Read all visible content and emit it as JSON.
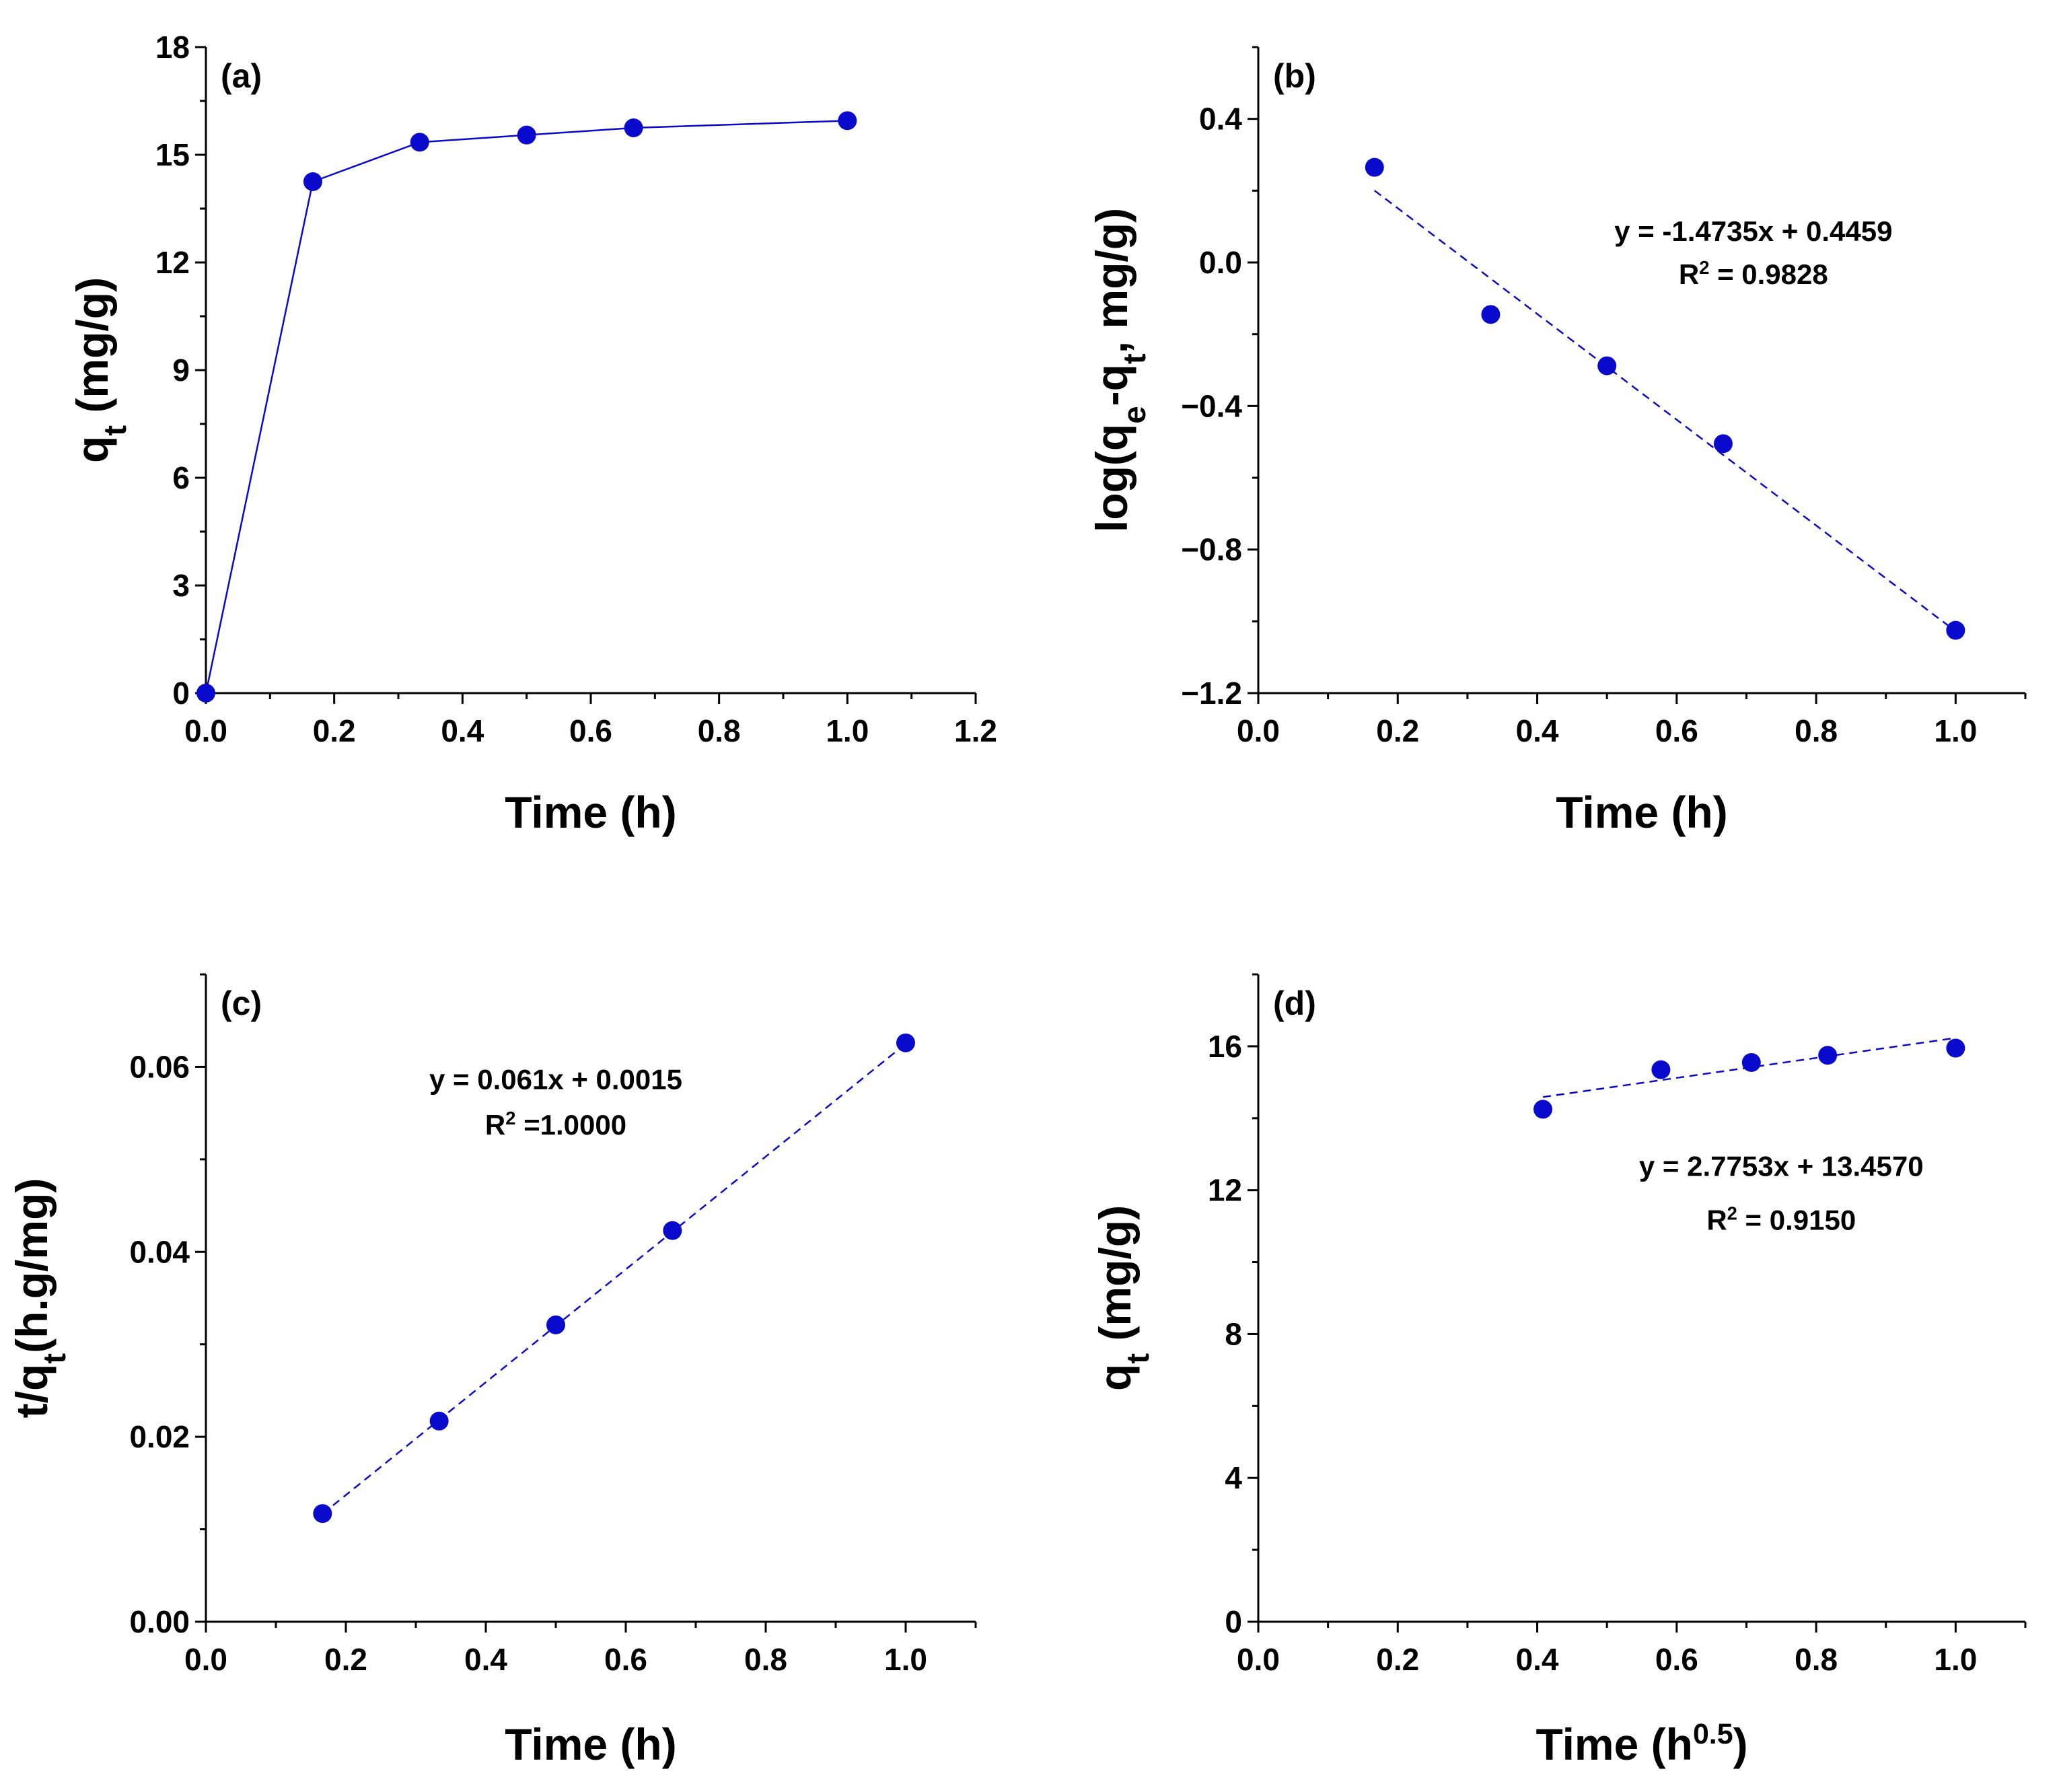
{
  "colors": {
    "series": "#0A0ACD",
    "axis": "#000000",
    "background": "#FFFFFF"
  },
  "chart_data": [
    {
      "panel_label": "(a)",
      "type": "line",
      "marker": "circle",
      "line_style": "solid",
      "xlabel": "Time (h)",
      "ylabel_parts": [
        {
          "text": "q",
          "shift": "none"
        },
        {
          "text": "t",
          "shift": "sub"
        },
        {
          "text": " (mg/g)",
          "shift": "none"
        }
      ],
      "xlim": [
        0,
        1.2
      ],
      "ylim": [
        0,
        18
      ],
      "xticks": [
        "0.0",
        "0.2",
        "0.4",
        "0.6",
        "0.8",
        "1.0",
        "1.2"
      ],
      "yticks": [
        "0",
        "3",
        "6",
        "9",
        "12",
        "15",
        "18"
      ],
      "x": [
        0,
        0.1667,
        0.3333,
        0.5,
        0.6667,
        1.0
      ],
      "y": [
        0,
        14.25,
        15.35,
        15.55,
        15.75,
        15.95
      ],
      "annotations": []
    },
    {
      "panel_label": "(b)",
      "type": "scatter",
      "marker": "circle",
      "line_style": "none",
      "xlabel": "Time (h)",
      "ylabel_parts": [
        {
          "text": "log(q",
          "shift": "none"
        },
        {
          "text": "e",
          "shift": "sub"
        },
        {
          "text": "-q",
          "shift": "none"
        },
        {
          "text": "t",
          "shift": "sub"
        },
        {
          "text": ", mg/g)",
          "shift": "none"
        }
      ],
      "xlim": [
        0,
        1.1
      ],
      "ylim": [
        -1.2,
        0.6
      ],
      "xticks": [
        "0.0",
        "0.2",
        "0.4",
        "0.6",
        "0.8",
        "1.0"
      ],
      "yticks": [
        "−1.2",
        "−0.8",
        "−0.4",
        "0.0",
        "0.4"
      ],
      "x": [
        0.1667,
        0.3333,
        0.5,
        0.6667,
        1.0
      ],
      "y": [
        0.265,
        -0.145,
        -0.288,
        -0.505,
        -1.025
      ],
      "fit": {
        "slope": -1.4735,
        "intercept": 0.4459,
        "x_range": [
          0.1667,
          1.0
        ]
      },
      "annotations": [
        {
          "parts": [
            {
              "text": "y = -1.4735x + 0.4459",
              "shift": "none"
            }
          ],
          "at": [
            0.71,
            0.06
          ]
        },
        {
          "parts": [
            {
              "text": "R",
              "shift": "none"
            },
            {
              "text": "2",
              "shift": "sup"
            },
            {
              "text": " = 0.9828",
              "shift": "none"
            }
          ],
          "at": [
            0.71,
            -0.06
          ]
        }
      ]
    },
    {
      "panel_label": "(c)",
      "type": "scatter",
      "marker": "circle",
      "line_style": "none",
      "xlabel": "Time (h)",
      "ylabel_parts": [
        {
          "text": "t/q",
          "shift": "none"
        },
        {
          "text": "t",
          "shift": "sub"
        },
        {
          "text": "(h.g/mg)",
          "shift": "none"
        }
      ],
      "xlim": [
        0,
        1.1
      ],
      "ylim": [
        0,
        0.07
      ],
      "xticks": [
        "0.0",
        "0.2",
        "0.4",
        "0.6",
        "0.8",
        "1.0"
      ],
      "yticks": [
        "0.00",
        "0.02",
        "0.04",
        "0.06"
      ],
      "x": [
        0.1667,
        0.3333,
        0.5,
        0.6667,
        1.0
      ],
      "y": [
        0.0117,
        0.0217,
        0.0321,
        0.0423,
        0.0626
      ],
      "fit": {
        "slope": 0.061,
        "intercept": 0.0015,
        "x_range": [
          0.1667,
          1.0
        ]
      },
      "annotations": [
        {
          "parts": [
            {
              "text": "y = 0.061x + 0.0015",
              "shift": "none"
            }
          ],
          "at": [
            0.5,
            0.0576
          ]
        },
        {
          "parts": [
            {
              "text": "R",
              "shift": "none"
            },
            {
              "text": "2",
              "shift": "sup"
            },
            {
              "text": " =1.0000",
              "shift": "none"
            }
          ],
          "at": [
            0.5,
            0.0527
          ]
        }
      ]
    },
    {
      "panel_label": "(d)",
      "type": "scatter",
      "marker": "circle",
      "line_style": "none",
      "xlabel_parts": [
        {
          "text": "Time (h",
          "shift": "none"
        },
        {
          "text": "0.5",
          "shift": "sup"
        },
        {
          "text": ")",
          "shift": "none"
        }
      ],
      "ylabel_parts": [
        {
          "text": "q",
          "shift": "none"
        },
        {
          "text": "t",
          "shift": "sub"
        },
        {
          "text": " (mg/g)",
          "shift": "none"
        }
      ],
      "xlim": [
        0,
        1.1
      ],
      "ylim": [
        0,
        18
      ],
      "xticks": [
        "0.0",
        "0.2",
        "0.4",
        "0.6",
        "0.8",
        "1.0"
      ],
      "yticks": [
        "0",
        "4",
        "8",
        "12",
        "16"
      ],
      "x": [
        0.4082,
        0.5774,
        0.7071,
        0.8165,
        1.0
      ],
      "y": [
        14.25,
        15.35,
        15.55,
        15.75,
        15.95
      ],
      "fit": {
        "slope": 2.7753,
        "intercept": 13.457,
        "x_range": [
          0.4082,
          1.0
        ]
      },
      "annotations": [
        {
          "parts": [
            {
              "text": "y = 2.7753x + 13.4570",
              "shift": "none"
            }
          ],
          "at": [
            0.75,
            12.4
          ]
        },
        {
          "parts": [
            {
              "text": "R",
              "shift": "none"
            },
            {
              "text": "2",
              "shift": "sup"
            },
            {
              "text": " = 0.9150",
              "shift": "none"
            }
          ],
          "at": [
            0.75,
            10.9
          ]
        }
      ]
    }
  ]
}
